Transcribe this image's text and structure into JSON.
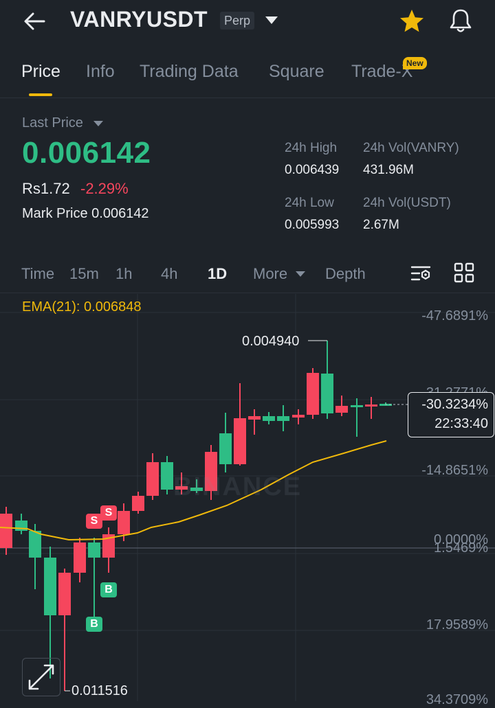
{
  "header": {
    "symbol": "VANRYUSDT",
    "contract_type": "Perp",
    "icons": {
      "back": "arrow-left-icon",
      "favorite": "star-icon",
      "alerts": "bell-icon"
    },
    "colors": {
      "favorite": "#f0b90b"
    }
  },
  "tabs": [
    {
      "label": "Price",
      "active": true
    },
    {
      "label": "Info"
    },
    {
      "label": "Trading Data"
    },
    {
      "label": "Square"
    },
    {
      "label": "Trade-X",
      "badge": "New"
    }
  ],
  "ticker": {
    "price_type": "Last Price",
    "last_price": "0.006142",
    "fiat_price": "Rs1.72",
    "change_pct": "-2.29%",
    "mark_label": "Mark Price",
    "mark_price": "0.006142",
    "high_label": "24h High",
    "high": "0.006439",
    "low_label": "24h Low",
    "low": "0.005993",
    "vol_base_label": "24h Vol(VANRY)",
    "vol_base": "431.96M",
    "vol_quote_label": "24h Vol(USDT)",
    "vol_quote": "2.67M"
  },
  "timeframes": {
    "items": [
      "Time",
      "15m",
      "1h",
      "4h",
      "1D",
      "More",
      "Depth"
    ],
    "active": "1D"
  },
  "chart": {
    "ema_label": "EMA(21): 0.006848",
    "watermark": "BINANCE",
    "axis_labels": [
      "-47.6891%",
      "-31.2771%",
      "-14.8651%",
      "0.0000%",
      "1.5469%",
      "17.9589%",
      "34.3709%"
    ],
    "current_pct": "-30.3234%",
    "countdown": "22:33:40",
    "high_marker": "0.004940",
    "low_marker": "0.011516",
    "sell_marker": "S",
    "buy_marker": "B",
    "colors": {
      "up": "#2ebd85",
      "down": "#f6465d",
      "ema": "#f0b90b"
    }
  }
}
